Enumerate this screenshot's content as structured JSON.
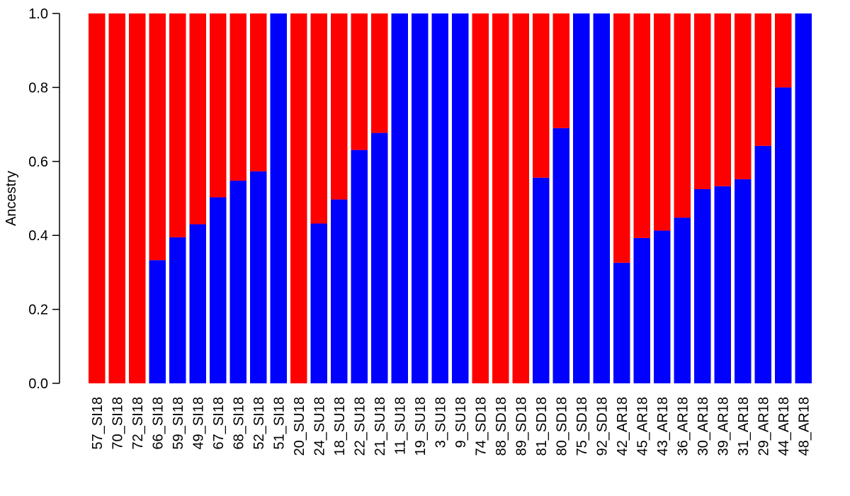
{
  "chart_data": {
    "type": "bar",
    "stacked": true,
    "ylabel": "Ancestry",
    "ylim": [
      0,
      1
    ],
    "yticks": [
      "0.0",
      "0.2",
      "0.4",
      "0.6",
      "0.8",
      "1.0"
    ],
    "categories": [
      "57_SI18",
      "70_SI18",
      "72_SI18",
      "66_SI18",
      "59_SI18",
      "49_SI18",
      "67_SI18",
      "68_SI18",
      "52_SI18",
      "51_SI18",
      "20_SU18",
      "24_SU18",
      "18_SU18",
      "22_SU18",
      "21_SU18",
      "11_SU18",
      "19_SU18",
      "3_SU18",
      "9_SU18",
      "74_SD18",
      "88_SD18",
      "89_SD18",
      "81_SD18",
      "80_SD18",
      "75_SD18",
      "92_SD18",
      "42_AR18",
      "45_AR18",
      "43_AR18",
      "36_AR18",
      "30_AR18",
      "39_AR18",
      "31_AR18",
      "29_AR18",
      "44_AR18",
      "48_AR18"
    ],
    "series": [
      {
        "color": "#0000FF",
        "values": [
          0,
          0,
          0,
          0.333,
          0.395,
          0.43,
          0.503,
          0.548,
          0.573,
          1.0,
          0,
          0.432,
          0.497,
          0.631,
          0.677,
          1.0,
          1.0,
          1.0,
          1.0,
          0,
          0,
          0,
          0.556,
          0.69,
          1.0,
          1.0,
          0.326,
          0.393,
          0.413,
          0.448,
          0.525,
          0.533,
          0.552,
          0.642,
          0.8,
          1.0
        ]
      },
      {
        "color": "#FF0000",
        "values": [
          1.0,
          1.0,
          1.0,
          0.667,
          0.605,
          0.57,
          0.497,
          0.452,
          0.427,
          0,
          1.0,
          0.568,
          0.503,
          0.369,
          0.323,
          0,
          0,
          0,
          0,
          1.0,
          1.0,
          1.0,
          0.444,
          0.31,
          0,
          0,
          0.674,
          0.607,
          0.587,
          0.552,
          0.475,
          0.467,
          0.448,
          0.358,
          0.2,
          0
        ]
      }
    ],
    "grid": false,
    "legend": "none"
  }
}
